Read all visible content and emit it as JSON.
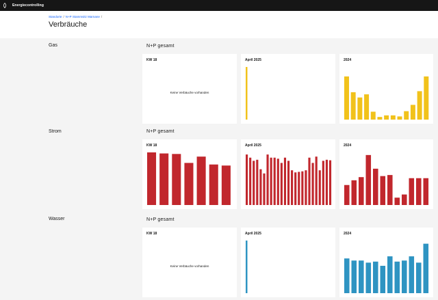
{
  "app": {
    "title": "Energiecontrolling"
  },
  "breadcrumb": [
    "Standorte",
    "N+P Stammsitz Marnane"
  ],
  "page": {
    "title": "Verbräuche"
  },
  "colors": {
    "gas": "#f1c21b",
    "strom": "#c1272d",
    "wasser": "#2e94c2",
    "link": "#0f62fe"
  },
  "sections": [
    {
      "label": "Gas",
      "group": "N+P gesamt",
      "cards": [
        {
          "title": "KW 18",
          "empty_text": "Keine Verbäuche vorhanden",
          "chart_data": {
            "type": "bar",
            "values": []
          }
        },
        {
          "title": "April 2025",
          "chart_data": {
            "type": "bar",
            "values": [
              100
            ]
          }
        },
        {
          "title": "2024",
          "chart_data": {
            "type": "bar",
            "values": [
              82,
              52,
              42,
              48,
              15,
              5,
              8,
              8,
              6,
              16,
              28,
              54,
              82
            ]
          }
        }
      ]
    },
    {
      "label": "Strom",
      "group": "N+P gesamt",
      "cards": [
        {
          "title": "KW 18",
          "chart_data": {
            "type": "bar",
            "values": [
              100,
              98,
              97,
              80,
              92,
              77,
              75
            ]
          }
        },
        {
          "title": "April 2025",
          "chart_data": {
            "type": "bar",
            "values": [
              96,
              90,
              84,
              86,
              68,
              60,
              96,
              90,
              90,
              88,
              80,
              90,
              84,
              66,
              62,
              63,
              64,
              66,
              90,
              80,
              92,
              66,
              84,
              86,
              85
            ]
          }
        },
        {
          "title": "2024",
          "chart_data": {
            "type": "bar",
            "values": [
              38,
              47,
              53,
              95,
              69,
              55,
              57,
              14,
              20,
              51,
              51,
              51
            ]
          }
        }
      ]
    },
    {
      "label": "Wasser",
      "group": "N+P gesamt",
      "cards": [
        {
          "title": "KW 18",
          "empty_text": "Keine Verbäuche vorhanden",
          "chart_data": {
            "type": "bar",
            "values": []
          }
        },
        {
          "title": "April 2025",
          "chart_data": {
            "type": "bar",
            "values": [
              100
            ]
          }
        },
        {
          "title": "2024",
          "chart_data": {
            "type": "bar",
            "values": [
              66,
              62,
              62,
              58,
              60,
              52,
              70,
              60,
              62,
              70,
              58,
              94
            ]
          }
        }
      ]
    }
  ]
}
